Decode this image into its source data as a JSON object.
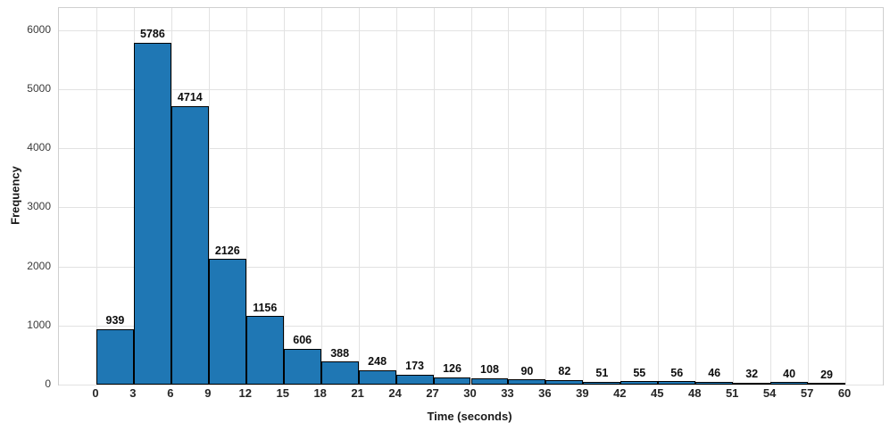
{
  "chart_data": {
    "type": "bar",
    "subtype": "histogram",
    "title": "",
    "xlabel": "Time (seconds)",
    "ylabel": "Frequency",
    "bin_width": 3,
    "bin_start": 0,
    "bin_edges": [
      0,
      3,
      6,
      9,
      12,
      15,
      18,
      21,
      24,
      27,
      30,
      33,
      36,
      39,
      42,
      45,
      48,
      51,
      54,
      57,
      60
    ],
    "values": [
      939,
      5786,
      4714,
      2126,
      1156,
      606,
      388,
      248,
      173,
      126,
      108,
      90,
      82,
      51,
      55,
      56,
      46,
      32,
      40,
      29
    ],
    "bar_value_labels": [
      "939",
      "5786",
      "4714",
      "2126",
      "1156",
      "606",
      "388",
      "248",
      "173",
      "126",
      "108",
      "90",
      "82",
      "51",
      "55",
      "56",
      "46",
      "32",
      "40",
      "29"
    ],
    "xticks": [
      0,
      3,
      6,
      9,
      12,
      15,
      18,
      21,
      24,
      27,
      30,
      33,
      36,
      39,
      42,
      45,
      48,
      51,
      54,
      57,
      60
    ],
    "yticks": [
      0,
      1000,
      2000,
      3000,
      4000,
      5000,
      6000
    ],
    "ytick_labels": [
      "0",
      "1000",
      "2000",
      "3000",
      "4000",
      "5000",
      "6000"
    ],
    "xlim": [
      -3,
      63
    ],
    "ylim": [
      0,
      6370
    ],
    "grid": true,
    "legend": null,
    "colors": {
      "bar_fill": "#1f77b4",
      "bar_edge": "#000000",
      "grid": "#e2e2e2",
      "spine": "#cfcfcf",
      "tick_text": "#262626",
      "label_text": "#1a1a1a",
      "background": "#ffffff"
    }
  }
}
